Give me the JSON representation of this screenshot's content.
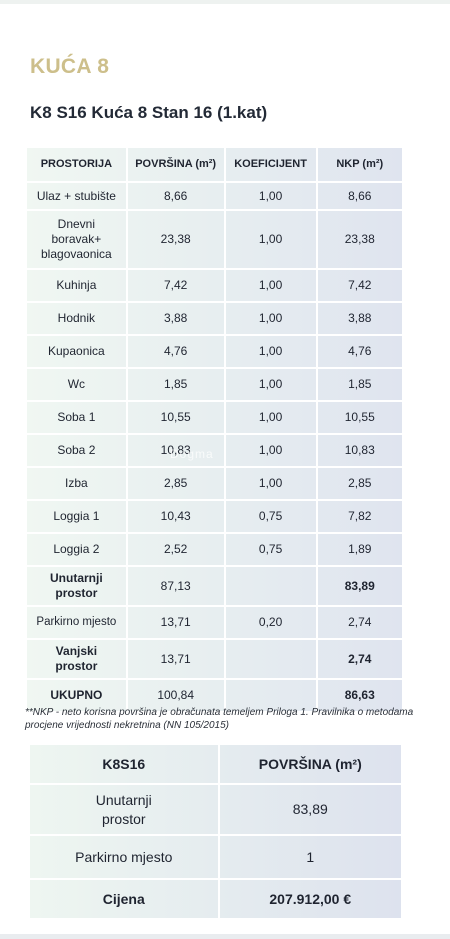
{
  "title": "KUĆA 8",
  "subtitle": "K8 S16 Kuća 8 Stan 16 (1.kat)",
  "rooms_table": {
    "headers": [
      "PROSTORIJA",
      "POVRŠINA (m²)",
      "KOEFICIJENT",
      "NKP (m²)"
    ],
    "rows": [
      {
        "name": "Ulaz + stubište",
        "area": "8,66",
        "coef": "1,00",
        "nkp": "8,66"
      },
      {
        "name": "Dnevni boravak+ blagovaonica",
        "area": "23,38",
        "coef": "1,00",
        "nkp": "23,38"
      },
      {
        "name": "Kuhinja",
        "area": "7,42",
        "coef": "1,00",
        "nkp": "7,42"
      },
      {
        "name": "Hodnik",
        "area": "3,88",
        "coef": "1,00",
        "nkp": "3,88"
      },
      {
        "name": "Kupaonica",
        "area": "4,76",
        "coef": "1,00",
        "nkp": "4,76"
      },
      {
        "name": "Wc",
        "area": "1,85",
        "coef": "1,00",
        "nkp": "1,85"
      },
      {
        "name": "Soba 1",
        "area": "10,55",
        "coef": "1,00",
        "nkp": "10,55"
      },
      {
        "name": "Soba 2",
        "area": "10,83",
        "coef": "1,00",
        "nkp": "10,83"
      },
      {
        "name": "Izba",
        "area": "2,85",
        "coef": "1,00",
        "nkp": "2,85"
      },
      {
        "name": "Loggia 1",
        "area": "10,43",
        "coef": "0,75",
        "nkp": "7,82"
      },
      {
        "name": "Loggia 2",
        "area": "2,52",
        "coef": "0,75",
        "nkp": "1,89"
      },
      {
        "name": "Unutarnji prostor",
        "area": "87,13",
        "coef": "",
        "nkp": "83,89"
      },
      {
        "name": "Parkirno mjesto",
        "area": "13,71",
        "coef": "0,20",
        "nkp": "2,74"
      },
      {
        "name": "Vanjski prostor",
        "area": "13,71",
        "coef": "",
        "nkp": "2,74"
      },
      {
        "name": "UKUPNO",
        "area": "100,84",
        "coef": "",
        "nkp": "86,63"
      }
    ]
  },
  "watermark": "Dogma",
  "note": "**NKP - neto korisna površina je obračunata temeljem Priloga 1. Pravilnika o metodama procjene vrijednosti nekretnina (NN 105/2015)",
  "summary_table": {
    "headers": [
      "K8S16",
      "POVRŠINA (m²)"
    ],
    "rows": [
      {
        "label": "Unutarnji prostor",
        "value": "83,89"
      },
      {
        "label": "Parkirno mjesto",
        "value": "1"
      },
      {
        "label": "Cijena",
        "value": "207.912,00 €"
      }
    ]
  }
}
